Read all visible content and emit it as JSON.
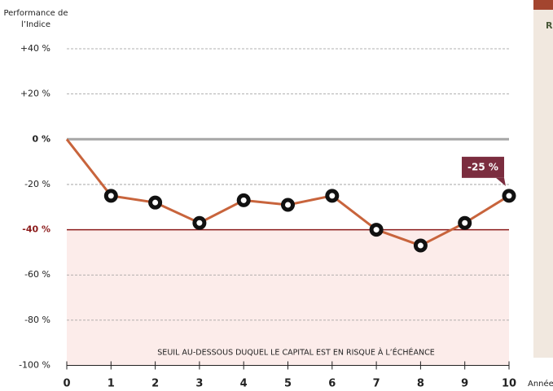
{
  "chart_data": {
    "type": "line",
    "y_label": "Performance de l’Indice",
    "x_label": "Année",
    "annotation": "SEUIL AU-DESSOUS DUQUEL LE CAPITAL EST EN RISQUE À L’ÉCHÉANCE",
    "side_panel_text": "R",
    "x": [
      0,
      1,
      2,
      3,
      4,
      5,
      6,
      7,
      8,
      9,
      10
    ],
    "series": [
      {
        "color": "#c8643c",
        "values": [
          0,
          -25,
          -28,
          -37,
          -27,
          -29,
          -25,
          -40,
          -47,
          -37,
          -25
        ]
      }
    ],
    "value_labels": [
      null,
      null,
      null,
      null,
      null,
      null,
      null,
      null,
      null,
      null,
      "-25 %"
    ],
    "threshold": -40,
    "xlim": [
      0,
      10
    ],
    "xticks": [
      0,
      1,
      2,
      3,
      4,
      5,
      6,
      7,
      8,
      9,
      10
    ],
    "ylim": [
      -100,
      40
    ],
    "yticks": [
      {
        "value": 40,
        "label": "+40 %"
      },
      {
        "value": 20,
        "label": "+20 %"
      },
      {
        "value": 0,
        "label": "0 %"
      },
      {
        "value": -20,
        "label": "-20 %"
      },
      {
        "value": -40,
        "label": "-40 %"
      },
      {
        "value": -60,
        "label": "-60 %"
      },
      {
        "value": -80,
        "label": "-80 %"
      },
      {
        "value": -100,
        "label": "-100 %"
      }
    ],
    "grid": true
  }
}
